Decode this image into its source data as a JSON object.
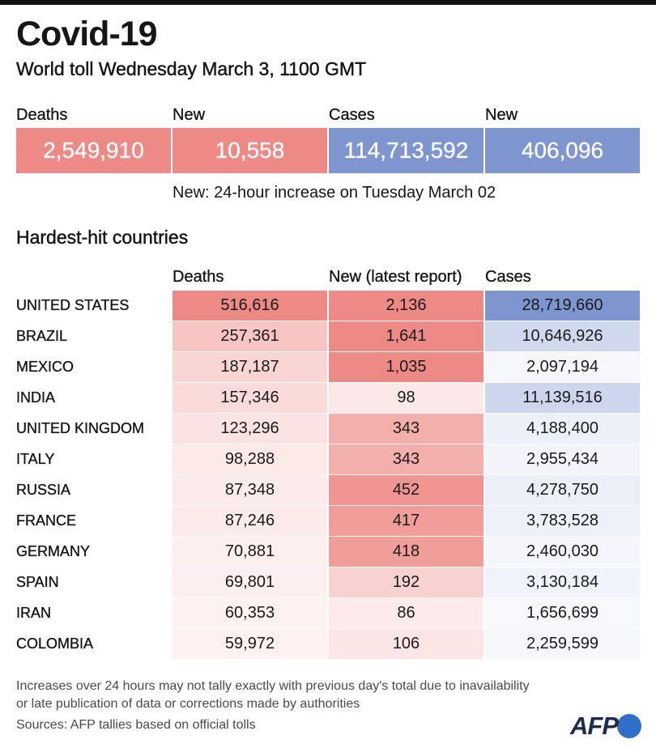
{
  "header": {
    "title": "Covid-19",
    "subtitle": "World toll Wednesday March 3, 1100 GMT"
  },
  "summary": {
    "items": [
      {
        "label": "Deaths",
        "value": "2,549,910"
      },
      {
        "label": "New",
        "value": "10,558"
      },
      {
        "label": "Cases",
        "value": "114,713,592"
      },
      {
        "label": "New",
        "value": "406,096"
      }
    ],
    "note": "New: 24-hour increase on Tuesday March 02"
  },
  "colors": {
    "deaths_scale": "#EE8A86",
    "cases_scale": "#7F95CF",
    "logo_text": "#1C2B50",
    "logo_globe": "#2F6FC7"
  },
  "chart_data": {
    "type": "table",
    "title": "Hardest-hit countries",
    "columns": [
      "Deaths",
      "New (latest report)",
      "Cases"
    ],
    "rows": [
      {
        "country": "UNITED STATES",
        "deaths": "516,616",
        "new": "2,136",
        "cases": "28,719,660"
      },
      {
        "country": "BRAZIL",
        "deaths": "257,361",
        "new": "1,641",
        "cases": "10,646,926"
      },
      {
        "country": "MEXICO",
        "deaths": "187,187",
        "new": "1,035",
        "cases": "2,097,194"
      },
      {
        "country": "INDIA",
        "deaths": "157,346",
        "new": "98",
        "cases": "11,139,516"
      },
      {
        "country": "UNITED KINGDOM",
        "deaths": "123,296",
        "new": "343",
        "cases": "4,188,400"
      },
      {
        "country": "ITALY",
        "deaths": "98,288",
        "new": "343",
        "cases": "2,955,434"
      },
      {
        "country": "RUSSIA",
        "deaths": "87,348",
        "new": "452",
        "cases": "4,278,750"
      },
      {
        "country": "FRANCE",
        "deaths": "87,246",
        "new": "417",
        "cases": "3,783,528"
      },
      {
        "country": "GERMANY",
        "deaths": "70,881",
        "new": "418",
        "cases": "2,460,030"
      },
      {
        "country": "SPAIN",
        "deaths": "69,801",
        "new": "192",
        "cases": "3,130,184"
      },
      {
        "country": "IRAN",
        "deaths": "60,353",
        "new": "86",
        "cases": "1,656,699"
      },
      {
        "country": "COLOMBIA",
        "deaths": "59,972",
        "new": "106",
        "cases": "2,259,599"
      }
    ]
  },
  "footer": {
    "note_lines": [
      "Increases over 24 hours may not tally exactly with previous day's total due to inavailability",
      "or late publication of data or corrections made by authorities"
    ],
    "sources": "Sources: AFP tallies based on official tolls",
    "logo": "AFP"
  }
}
